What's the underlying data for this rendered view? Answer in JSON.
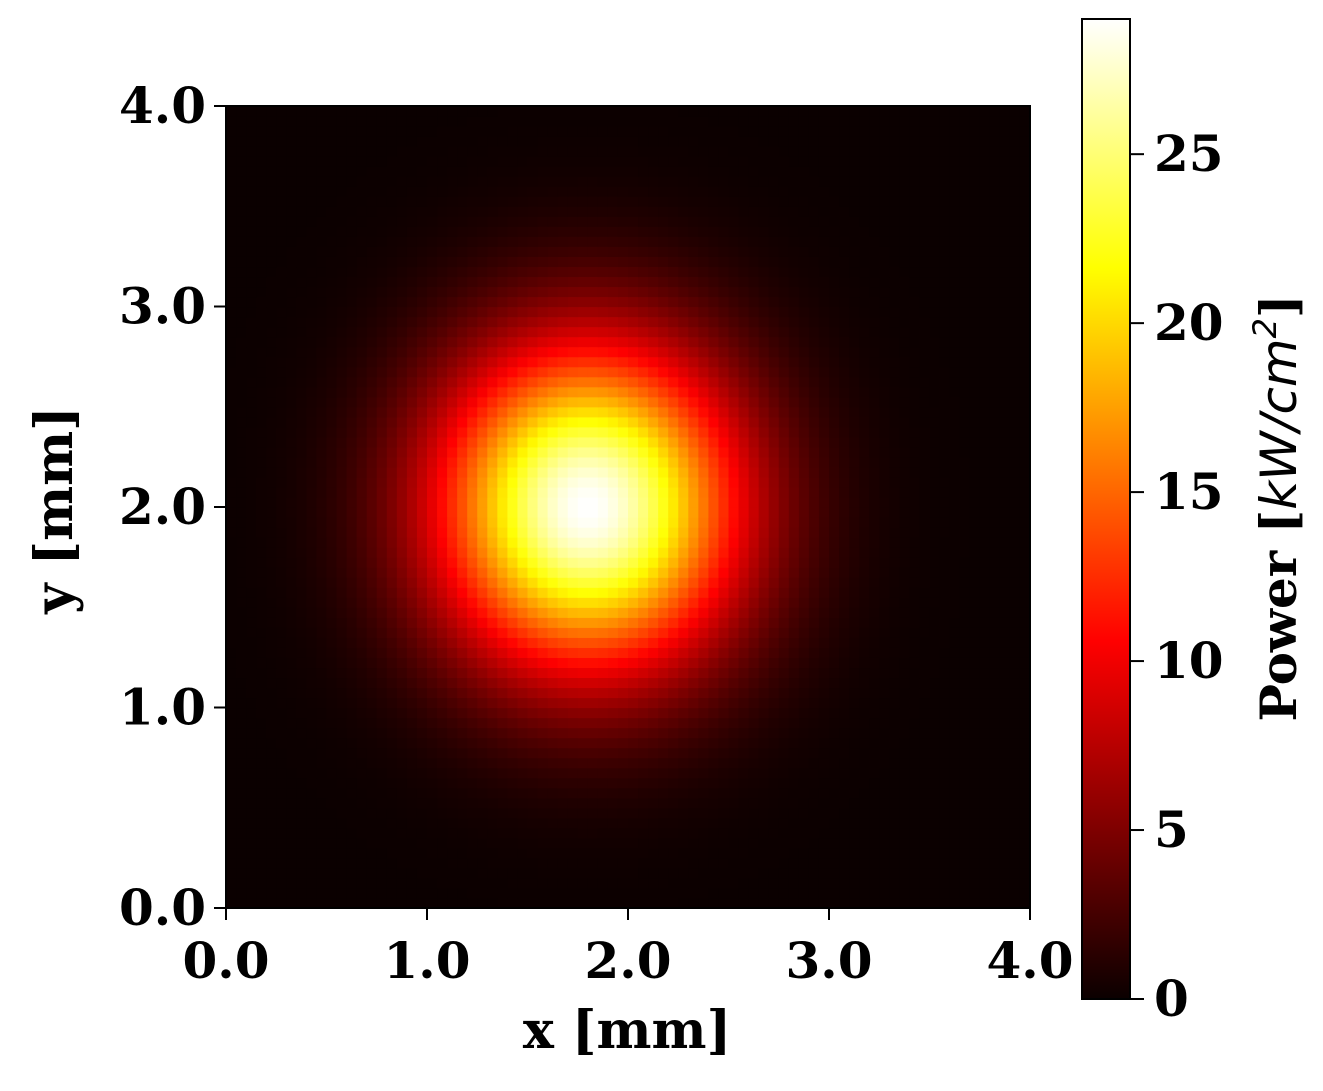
{
  "chart_data": {
    "type": "heatmap",
    "colormap": "hot",
    "xlabel": "x [mm]",
    "ylabel": "y [mm]",
    "xlim": [
      0.0,
      4.0
    ],
    "ylim": [
      0.0,
      4.0
    ],
    "x_ticks": [
      "0.0",
      "1.0",
      "2.0",
      "3.0",
      "4.0"
    ],
    "y_ticks": [
      "0.0",
      "1.0",
      "2.0",
      "3.0",
      "4.0"
    ],
    "grid": false,
    "peak": {
      "x": 1.8,
      "y": 2.0,
      "value": 29.0,
      "sigma_x": 0.52,
      "sigma_y": 0.56
    },
    "resolution": 80,
    "colorbar": {
      "label_prefix": "Power [",
      "label_unit": "kW/cm",
      "label_exponent": "2",
      "label_suffix": "]",
      "min": 0,
      "max": 29,
      "ticks": [
        0,
        5,
        10,
        15,
        20,
        25
      ],
      "tick_labels": [
        "0",
        "5",
        "10",
        "15",
        "20",
        "25"
      ]
    }
  }
}
